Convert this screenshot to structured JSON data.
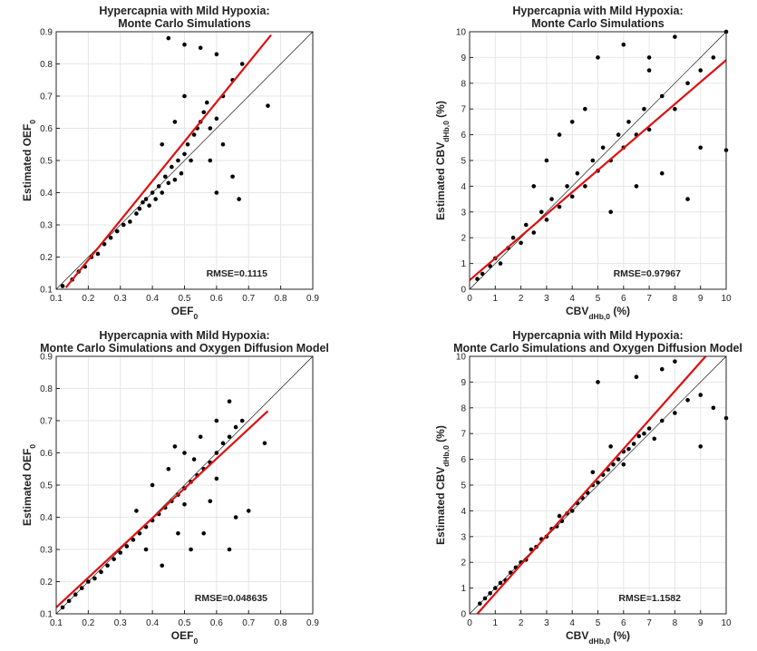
{
  "figure": {
    "colors": {
      "points": "#000000",
      "fit_line": "#dd1111",
      "identity_line": "#000000",
      "grid": "#e6e6e6"
    }
  },
  "chart_data": [
    {
      "type": "scatter",
      "title": [
        "Hypercapnia with Mild Hypoxia:",
        "Monte Carlo Simulations"
      ],
      "xlabel": {
        "main": "OEF",
        "sub": "0",
        "suffix": ""
      },
      "ylabel": {
        "main": "Estimated OEF",
        "sub": "0",
        "suffix": ""
      },
      "xlim": [
        0.1,
        0.9
      ],
      "ylim": [
        0.1,
        0.9
      ],
      "xticks": [
        0.1,
        0.2,
        0.3,
        0.4,
        0.5,
        0.6,
        0.7,
        0.8,
        0.9
      ],
      "yticks": [
        0.1,
        0.2,
        0.3,
        0.4,
        0.5,
        0.6,
        0.7,
        0.8,
        0.9
      ],
      "tick_format": "dec",
      "grid": true,
      "annotation": "RMSE=0.1115",
      "identity_line": true,
      "fit_line": {
        "x": [
          0.13,
          0.77
        ],
        "y": [
          0.105,
          0.89
        ]
      },
      "points": [
        [
          0.12,
          0.11
        ],
        [
          0.15,
          0.13
        ],
        [
          0.17,
          0.155
        ],
        [
          0.19,
          0.17
        ],
        [
          0.21,
          0.2
        ],
        [
          0.23,
          0.21
        ],
        [
          0.25,
          0.24
        ],
        [
          0.27,
          0.26
        ],
        [
          0.29,
          0.28
        ],
        [
          0.31,
          0.3
        ],
        [
          0.33,
          0.31
        ],
        [
          0.35,
          0.335
        ],
        [
          0.36,
          0.35
        ],
        [
          0.37,
          0.37
        ],
        [
          0.38,
          0.38
        ],
        [
          0.39,
          0.36
        ],
        [
          0.4,
          0.4
        ],
        [
          0.41,
          0.38
        ],
        [
          0.42,
          0.42
        ],
        [
          0.43,
          0.4
        ],
        [
          0.44,
          0.45
        ],
        [
          0.45,
          0.43
        ],
        [
          0.46,
          0.48
        ],
        [
          0.47,
          0.44
        ],
        [
          0.48,
          0.5
        ],
        [
          0.49,
          0.46
        ],
        [
          0.5,
          0.52
        ],
        [
          0.51,
          0.55
        ],
        [
          0.52,
          0.5
        ],
        [
          0.53,
          0.58
        ],
        [
          0.54,
          0.6
        ],
        [
          0.55,
          0.62
        ],
        [
          0.56,
          0.65
        ],
        [
          0.57,
          0.68
        ],
        [
          0.58,
          0.6
        ],
        [
          0.6,
          0.63
        ],
        [
          0.62,
          0.7
        ],
        [
          0.65,
          0.75
        ],
        [
          0.68,
          0.8
        ],
        [
          0.45,
          0.88
        ],
        [
          0.5,
          0.86
        ],
        [
          0.55,
          0.85
        ],
        [
          0.6,
          0.83
        ],
        [
          0.58,
          0.5
        ],
        [
          0.62,
          0.55
        ],
        [
          0.65,
          0.45
        ],
        [
          0.67,
          0.38
        ],
        [
          0.76,
          0.67
        ],
        [
          0.47,
          0.62
        ],
        [
          0.5,
          0.7
        ],
        [
          0.43,
          0.55
        ],
        [
          0.6,
          0.4
        ]
      ],
      "placements": {
        "panel": "top-left",
        "annotation": "bottom-right"
      }
    },
    {
      "type": "scatter",
      "title": [
        "Hypercapnia with Mild Hypoxia:",
        "Monte Carlo Simulations"
      ],
      "xlabel": {
        "main": "CBV",
        "sub": "dHb,0",
        "suffix": " (%)"
      },
      "ylabel": {
        "main": "Estimated CBV",
        "sub": "dHb,0",
        "suffix": " (%)"
      },
      "xlim": [
        0,
        10
      ],
      "ylim": [
        0,
        10
      ],
      "xticks": [
        0,
        1,
        2,
        3,
        4,
        5,
        6,
        7,
        8,
        9,
        10
      ],
      "yticks": [
        0,
        1,
        2,
        3,
        4,
        5,
        6,
        7,
        8,
        9,
        10
      ],
      "tick_format": "int",
      "grid": true,
      "annotation": "RMSE=0.97967",
      "identity_line": true,
      "fit_line": {
        "x": [
          0,
          10
        ],
        "y": [
          0.35,
          8.9
        ]
      },
      "points": [
        [
          0.3,
          0.4
        ],
        [
          0.5,
          0.6
        ],
        [
          0.8,
          0.9
        ],
        [
          1.0,
          1.2
        ],
        [
          1.2,
          1.0
        ],
        [
          1.5,
          1.6
        ],
        [
          1.7,
          2.0
        ],
        [
          2.0,
          1.8
        ],
        [
          2.2,
          2.5
        ],
        [
          2.5,
          2.2
        ],
        [
          2.8,
          3.0
        ],
        [
          3.0,
          2.7
        ],
        [
          3.2,
          3.5
        ],
        [
          3.5,
          3.2
        ],
        [
          3.8,
          4.0
        ],
        [
          4.0,
          3.6
        ],
        [
          4.2,
          4.5
        ],
        [
          4.5,
          4.0
        ],
        [
          4.8,
          5.0
        ],
        [
          5.0,
          4.6
        ],
        [
          5.2,
          5.5
        ],
        [
          5.5,
          5.0
        ],
        [
          5.8,
          6.0
        ],
        [
          6.0,
          5.5
        ],
        [
          6.2,
          6.5
        ],
        [
          6.5,
          6.0
        ],
        [
          6.8,
          7.0
        ],
        [
          7.0,
          6.2
        ],
        [
          7.5,
          7.5
        ],
        [
          8.0,
          7.0
        ],
        [
          8.5,
          8.0
        ],
        [
          9.0,
          8.5
        ],
        [
          9.5,
          9.0
        ],
        [
          10.0,
          10.0
        ],
        [
          5.0,
          9.0
        ],
        [
          6.0,
          9.5
        ],
        [
          7.0,
          9.0
        ],
        [
          8.0,
          9.8
        ],
        [
          3.5,
          6.0
        ],
        [
          4.0,
          6.5
        ],
        [
          2.5,
          4.0
        ],
        [
          6.5,
          4.0
        ],
        [
          7.5,
          4.5
        ],
        [
          9.0,
          5.5
        ],
        [
          10.0,
          5.4
        ],
        [
          5.5,
          3.0
        ],
        [
          8.5,
          3.5
        ],
        [
          4.5,
          7.0
        ],
        [
          3.0,
          5.0
        ],
        [
          7.0,
          8.5
        ]
      ],
      "placements": {
        "panel": "top-right",
        "annotation": "bottom-right"
      }
    },
    {
      "type": "scatter",
      "title": [
        "Hypercapnia with Mild Hypoxia:",
        "Monte Carlo Simulations and Oxygen Diffusion Model"
      ],
      "xlabel": {
        "main": "OEF",
        "sub": "0",
        "suffix": ""
      },
      "ylabel": {
        "main": "Estimated OEF",
        "sub": "0",
        "suffix": ""
      },
      "xlim": [
        0.1,
        0.9
      ],
      "ylim": [
        0.1,
        0.9
      ],
      "xticks": [
        0.1,
        0.2,
        0.3,
        0.4,
        0.5,
        0.6,
        0.7,
        0.8,
        0.9
      ],
      "yticks": [
        0.1,
        0.2,
        0.3,
        0.4,
        0.5,
        0.6,
        0.7,
        0.8,
        0.9
      ],
      "tick_format": "dec",
      "grid": true,
      "annotation": "RMSE=0.048635",
      "identity_line": true,
      "fit_line": {
        "x": [
          0.1,
          0.76
        ],
        "y": [
          0.12,
          0.73
        ]
      },
      "points": [
        [
          0.12,
          0.12
        ],
        [
          0.14,
          0.14
        ],
        [
          0.16,
          0.16
        ],
        [
          0.18,
          0.18
        ],
        [
          0.2,
          0.2
        ],
        [
          0.22,
          0.21
        ],
        [
          0.24,
          0.23
        ],
        [
          0.26,
          0.25
        ],
        [
          0.28,
          0.27
        ],
        [
          0.3,
          0.29
        ],
        [
          0.32,
          0.31
        ],
        [
          0.34,
          0.33
        ],
        [
          0.36,
          0.35
        ],
        [
          0.38,
          0.37
        ],
        [
          0.4,
          0.39
        ],
        [
          0.42,
          0.41
        ],
        [
          0.44,
          0.43
        ],
        [
          0.46,
          0.45
        ],
        [
          0.48,
          0.47
        ],
        [
          0.5,
          0.49
        ],
        [
          0.52,
          0.51
        ],
        [
          0.54,
          0.53
        ],
        [
          0.56,
          0.55
        ],
        [
          0.58,
          0.57
        ],
        [
          0.6,
          0.6
        ],
        [
          0.62,
          0.63
        ],
        [
          0.64,
          0.65
        ],
        [
          0.66,
          0.68
        ],
        [
          0.68,
          0.7
        ],
        [
          0.5,
          0.6
        ],
        [
          0.55,
          0.65
        ],
        [
          0.6,
          0.7
        ],
        [
          0.64,
          0.76
        ],
        [
          0.58,
          0.45
        ],
        [
          0.56,
          0.35
        ],
        [
          0.52,
          0.3
        ],
        [
          0.64,
          0.3
        ],
        [
          0.66,
          0.4
        ],
        [
          0.7,
          0.42
        ],
        [
          0.75,
          0.63
        ],
        [
          0.45,
          0.55
        ],
        [
          0.4,
          0.5
        ],
        [
          0.38,
          0.3
        ],
        [
          0.48,
          0.35
        ],
        [
          0.43,
          0.25
        ],
        [
          0.47,
          0.62
        ],
        [
          0.53,
          0.58
        ],
        [
          0.35,
          0.42
        ],
        [
          0.6,
          0.52
        ],
        [
          0.5,
          0.44
        ]
      ],
      "placements": {
        "panel": "bottom-left",
        "annotation": "bottom-right"
      }
    },
    {
      "type": "scatter",
      "title": [
        "Hypercapnia with Mild Hypoxia:",
        "Monte Carlo Simulations and Oxygen Diffusion Model"
      ],
      "xlabel": {
        "main": "CBV",
        "sub": "dHb,0",
        "suffix": " (%)"
      },
      "ylabel": {
        "main": "Estimated CBV",
        "sub": "dHb,0",
        "suffix": " (%)"
      },
      "xlim": [
        0,
        10
      ],
      "ylim": [
        0,
        10
      ],
      "xticks": [
        0,
        1,
        2,
        3,
        4,
        5,
        6,
        7,
        8,
        9,
        10
      ],
      "yticks": [
        0,
        1,
        2,
        3,
        4,
        5,
        6,
        7,
        8,
        9,
        10
      ],
      "tick_format": "int",
      "grid": true,
      "annotation": "RMSE=1.1582",
      "identity_line": true,
      "fit_line": {
        "x": [
          0.3,
          9.2
        ],
        "y": [
          0,
          10
        ]
      },
      "points": [
        [
          0.4,
          0.4
        ],
        [
          0.6,
          0.6
        ],
        [
          0.8,
          0.8
        ],
        [
          1.0,
          1.0
        ],
        [
          1.2,
          1.2
        ],
        [
          1.4,
          1.3
        ],
        [
          1.6,
          1.6
        ],
        [
          1.8,
          1.8
        ],
        [
          2.0,
          2.0
        ],
        [
          2.2,
          2.1
        ],
        [
          2.4,
          2.5
        ],
        [
          2.6,
          2.6
        ],
        [
          2.8,
          2.9
        ],
        [
          3.0,
          3.0
        ],
        [
          3.2,
          3.3
        ],
        [
          3.4,
          3.4
        ],
        [
          3.6,
          3.6
        ],
        [
          3.8,
          3.9
        ],
        [
          4.0,
          4.0
        ],
        [
          4.2,
          4.3
        ],
        [
          4.4,
          4.5
        ],
        [
          4.6,
          4.7
        ],
        [
          4.8,
          5.0
        ],
        [
          5.0,
          5.1
        ],
        [
          5.2,
          5.4
        ],
        [
          5.4,
          5.6
        ],
        [
          5.6,
          5.8
        ],
        [
          5.8,
          6.0
        ],
        [
          6.0,
          6.3
        ],
        [
          6.2,
          6.4
        ],
        [
          6.4,
          6.6
        ],
        [
          6.6,
          6.9
        ],
        [
          6.8,
          7.0
        ],
        [
          7.0,
          7.2
        ],
        [
          7.5,
          7.5
        ],
        [
          8.0,
          7.8
        ],
        [
          8.5,
          8.3
        ],
        [
          9.0,
          8.5
        ],
        [
          9.5,
          8.0
        ],
        [
          10.0,
          7.6
        ],
        [
          5.0,
          9.0
        ],
        [
          6.5,
          9.2
        ],
        [
          7.5,
          9.5
        ],
        [
          8.0,
          9.8
        ],
        [
          9.0,
          6.5
        ],
        [
          4.8,
          5.5
        ],
        [
          5.5,
          6.5
        ],
        [
          6.0,
          5.8
        ],
        [
          7.2,
          6.8
        ],
        [
          3.5,
          3.8
        ]
      ],
      "placements": {
        "panel": "bottom-right",
        "annotation": "bottom-right"
      }
    }
  ]
}
